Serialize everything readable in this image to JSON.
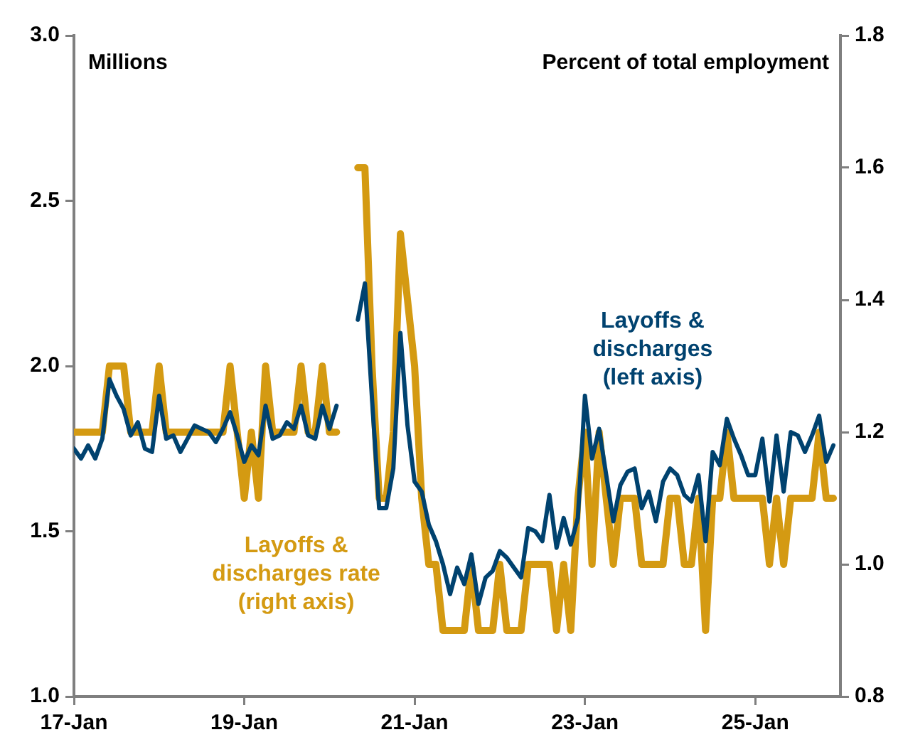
{
  "chart_data": {
    "type": "line",
    "marker": "none",
    "ylabel": "Millions",
    "y2label": "Percent of total employment",
    "x": [
      "2017-01",
      "2017-02",
      "2017-03",
      "2017-04",
      "2017-05",
      "2017-06",
      "2017-07",
      "2017-08",
      "2017-09",
      "2017-10",
      "2017-11",
      "2017-12",
      "2018-01",
      "2018-02",
      "2018-03",
      "2018-04",
      "2018-05",
      "2018-06",
      "2018-07",
      "2018-08",
      "2018-09",
      "2018-10",
      "2018-11",
      "2018-12",
      "2019-01",
      "2019-02",
      "2019-03",
      "2019-04",
      "2019-05",
      "2019-06",
      "2019-07",
      "2019-08",
      "2019-09",
      "2019-10",
      "2019-11",
      "2019-12",
      "2020-01",
      "2020-02",
      "2020-03",
      "2020-04",
      "2020-05",
      "2020-06",
      "2020-07",
      "2020-08",
      "2020-09",
      "2020-10",
      "2020-11",
      "2020-12",
      "2021-01",
      "2021-02",
      "2021-03",
      "2021-04",
      "2021-05",
      "2021-06",
      "2021-07",
      "2021-08",
      "2021-09",
      "2021-10",
      "2021-11",
      "2021-12",
      "2022-01",
      "2022-02",
      "2022-03",
      "2022-04",
      "2022-05",
      "2022-06",
      "2022-07",
      "2022-08",
      "2022-09",
      "2022-10",
      "2022-11",
      "2022-12",
      "2023-01",
      "2023-02",
      "2023-03",
      "2023-04",
      "2023-05",
      "2023-06",
      "2023-07",
      "2023-08",
      "2023-09",
      "2023-10",
      "2023-11",
      "2023-12",
      "2024-01",
      "2024-02",
      "2024-03",
      "2024-04",
      "2024-05",
      "2024-06",
      "2024-07",
      "2024-08",
      "2024-09",
      "2024-10",
      "2024-11",
      "2024-12",
      "2025-01",
      "2025-02",
      "2025-03",
      "2025-04",
      "2025-05",
      "2025-06",
      "2025-07",
      "2025-08",
      "2025-09",
      "2025-10",
      "2025-11",
      "2025-12"
    ],
    "xlim": [
      "2017-01",
      "2026-01"
    ],
    "xticks": [
      {
        "value": "2017-01",
        "label": "17-Jan"
      },
      {
        "value": "2019-01",
        "label": "19-Jan"
      },
      {
        "value": "2021-01",
        "label": "21-Jan"
      },
      {
        "value": "2023-01",
        "label": "23-Jan"
      },
      {
        "value": "2025-01",
        "label": "25-Jan"
      }
    ],
    "ylim": [
      1,
      3
    ],
    "yticks": [
      {
        "value": 1,
        "label": "1.0"
      },
      1.5,
      {
        "value": 2,
        "label": "2.0"
      },
      2.5,
      {
        "value": 3,
        "label": "3.0"
      }
    ],
    "y2lim": [
      0.8,
      1.8
    ],
    "y2ticks": [
      0.8,
      {
        "value": 1,
        "label": "1.0"
      },
      1.2,
      1.4,
      1.6,
      1.8
    ],
    "series": [
      {
        "name": "Layoffs &\ndischarges\n(left axis)",
        "color": "#00426f",
        "axis": "y",
        "values": [
          1.75,
          1.72,
          1.76,
          1.72,
          1.78,
          1.96,
          1.91,
          1.87,
          1.79,
          1.83,
          1.75,
          1.74,
          1.91,
          1.78,
          1.79,
          1.74,
          1.78,
          1.82,
          1.81,
          1.8,
          1.77,
          1.81,
          1.86,
          1.79,
          1.71,
          1.76,
          1.73,
          1.88,
          1.78,
          1.79,
          1.83,
          1.81,
          1.88,
          1.79,
          1.78,
          1.88,
          1.81,
          1.88,
          null,
          null,
          2.14,
          2.25,
          1.9,
          1.57,
          1.57,
          1.69,
          2.1,
          1.82,
          1.65,
          1.62,
          1.52,
          1.47,
          1.4,
          1.31,
          1.39,
          1.34,
          1.43,
          1.28,
          1.36,
          1.38,
          1.44,
          1.42,
          1.39,
          1.36,
          1.51,
          1.5,
          1.47,
          1.61,
          1.45,
          1.54,
          1.46,
          1.54,
          1.91,
          1.72,
          1.81,
          1.67,
          1.53,
          1.64,
          1.68,
          1.69,
          1.57,
          1.62,
          1.53,
          1.65,
          1.69,
          1.67,
          1.61,
          1.59,
          1.67,
          1.47,
          1.74,
          1.7,
          1.84,
          1.78,
          1.73,
          1.67,
          1.67,
          1.78,
          1.59,
          1.79,
          1.62,
          1.8,
          1.79,
          1.74,
          1.79,
          1.85,
          1.71,
          1.76
        ]
      },
      {
        "name": "Layoffs &\ndischarges rate\n(right axis)",
        "color": "#d49a12",
        "axis": "y2",
        "values": [
          1.2,
          1.2,
          1.2,
          1.2,
          1.2,
          1.3,
          1.3,
          1.3,
          1.2,
          1.2,
          1.2,
          1.2,
          1.3,
          1.2,
          1.2,
          1.2,
          1.2,
          1.2,
          1.2,
          1.2,
          1.2,
          1.2,
          1.3,
          1.2,
          1.1,
          1.2,
          1.1,
          1.3,
          1.2,
          1.2,
          1.2,
          1.2,
          1.3,
          1.2,
          1.2,
          1.3,
          1.2,
          1.2,
          null,
          null,
          1.6,
          1.6,
          1.3,
          1.1,
          1.1,
          1.2,
          1.5,
          1.4,
          1.3,
          1.1,
          1.0,
          1.0,
          0.9,
          0.9,
          0.9,
          0.9,
          1.0,
          0.9,
          0.9,
          0.9,
          1.0,
          0.9,
          0.9,
          0.9,
          1.0,
          1.0,
          1.0,
          1.0,
          0.9,
          1.0,
          0.9,
          1.1,
          1.2,
          1.0,
          1.2,
          1.1,
          1.0,
          1.1,
          1.1,
          1.1,
          1.0,
          1.0,
          1.0,
          1.0,
          1.1,
          1.1,
          1.0,
          1.0,
          1.1,
          0.9,
          1.1,
          1.1,
          1.2,
          1.1,
          1.1,
          1.1,
          1.1,
          1.1,
          1.0,
          1.1,
          1.0,
          1.1,
          1.1,
          1.1,
          1.1,
          1.2,
          1.1,
          1.1
        ]
      }
    ]
  }
}
